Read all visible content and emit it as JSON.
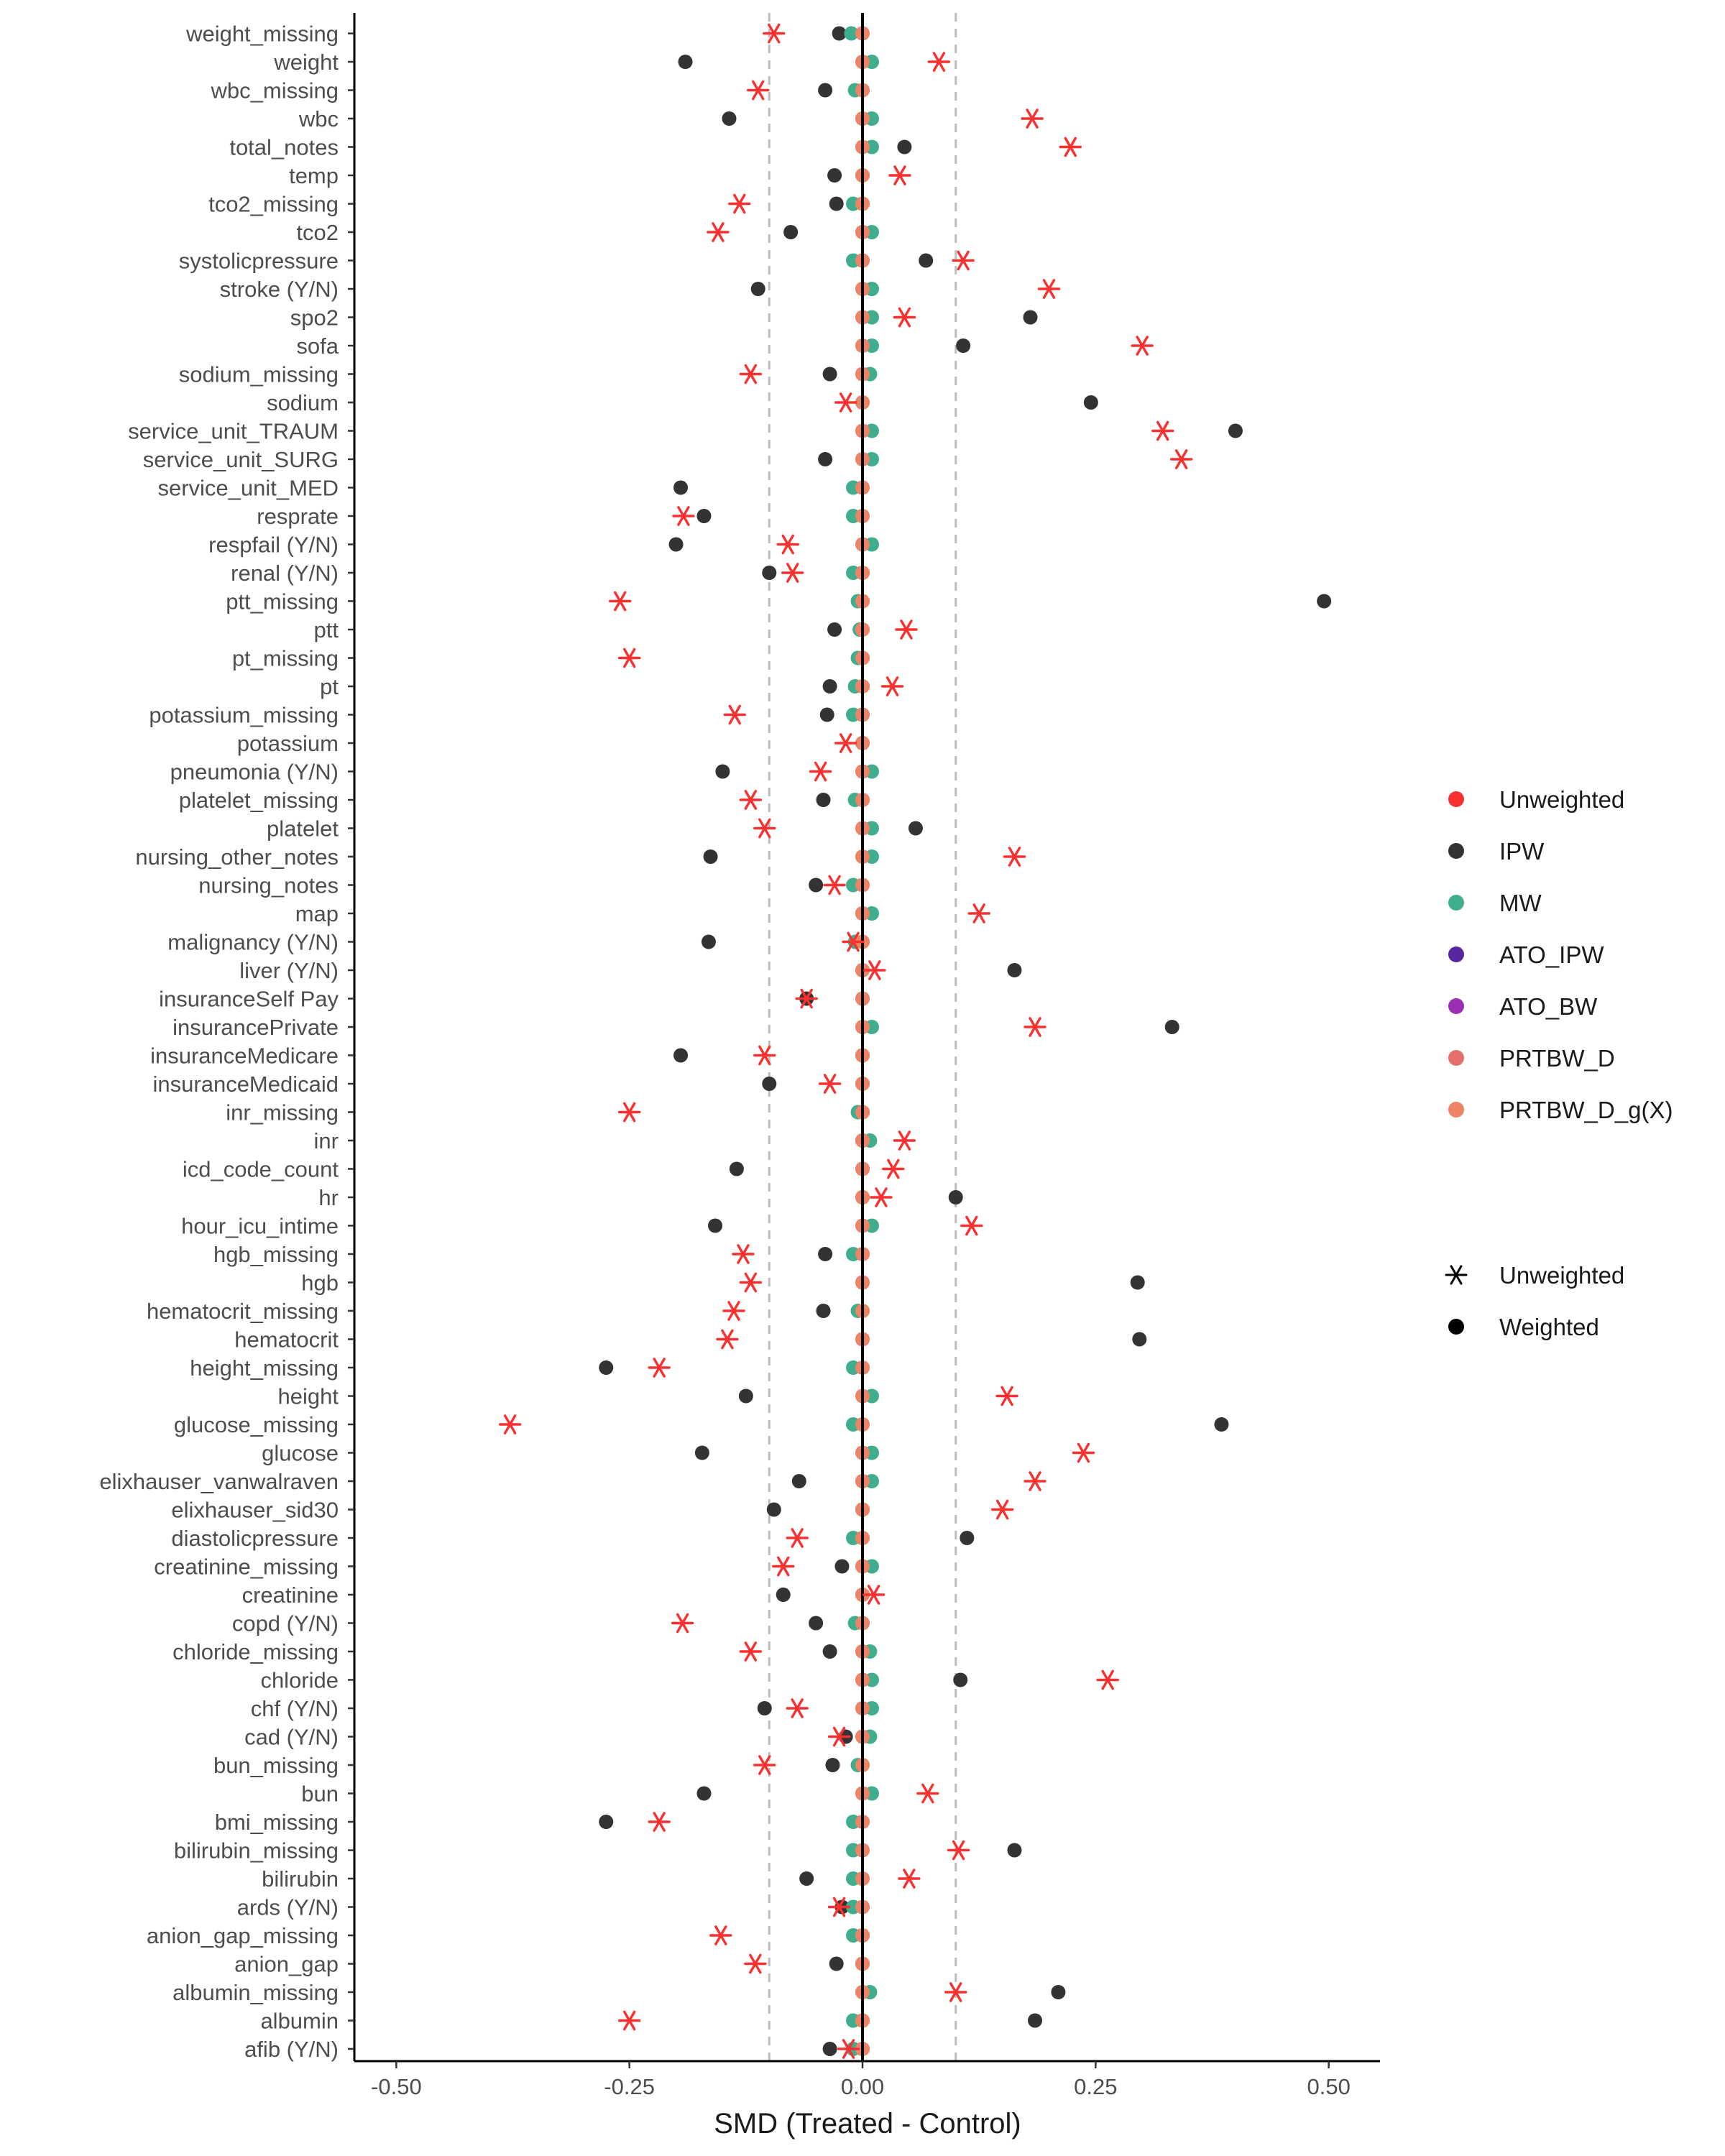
{
  "chart_data": {
    "type": "scatter",
    "title": "",
    "xlabel": "SMD (Treated - Control)",
    "ylabel": "",
    "xlim": [
      -0.545,
      0.555
    ],
    "xticks": [
      -0.5,
      -0.25,
      0.0,
      0.25,
      0.5
    ],
    "xtick_labels": [
      "-0.50",
      "-0.25",
      "0.00",
      "0.25",
      "0.50"
    ],
    "reference_lines": [
      {
        "x": 0,
        "style": "solid",
        "color": "#000000"
      },
      {
        "x": -0.1,
        "style": "dashed",
        "color": "#bdbdbd"
      },
      {
        "x": 0.1,
        "style": "dashed",
        "color": "#bdbdbd"
      }
    ],
    "series_colors": {
      "Unweighted": "#f8302f",
      "IPW": "#333333",
      "MW": "#3fae8f",
      "ATO_IPW": "#5a26a0",
      "ATO_BW": "#9c2eb4",
      "PRTBW_D": "#e56f6c",
      "PRTBW_D_g(X)": "#eb8565"
    },
    "legend_color": {
      "title": "",
      "items": [
        {
          "label": "Unweighted",
          "color": "#f8302f"
        },
        {
          "label": "IPW",
          "color": "#333333"
        },
        {
          "label": "MW",
          "color": "#3fae8f"
        },
        {
          "label": "ATO_IPW",
          "color": "#5a26a0"
        },
        {
          "label": "ATO_BW",
          "color": "#9c2eb4"
        },
        {
          "label": "PRTBW_D",
          "color": "#e56f6c"
        },
        {
          "label": "PRTBW_D_g(X)",
          "color": "#eb8565"
        }
      ]
    },
    "legend_shape": {
      "title": "",
      "items": [
        {
          "label": "Unweighted",
          "shape": "asterisk"
        },
        {
          "label": "Weighted",
          "shape": "circle"
        }
      ]
    },
    "categories": [
      "weight_missing",
      "weight",
      "wbc_missing",
      "wbc",
      "total_notes",
      "temp",
      "tco2_missing",
      "tco2",
      "systolicpressure",
      "stroke (Y/N)",
      "spo2",
      "sofa",
      "sodium_missing",
      "sodium",
      "service_unit_TRAUM",
      "service_unit_SURG",
      "service_unit_MED",
      "resprate",
      "respfail (Y/N)",
      "renal (Y/N)",
      "ptt_missing",
      "ptt",
      "pt_missing",
      "pt",
      "potassium_missing",
      "potassium",
      "pneumonia (Y/N)",
      "platelet_missing",
      "platelet",
      "nursing_other_notes",
      "nursing_notes",
      "map",
      "malignancy (Y/N)",
      "liver (Y/N)",
      "insuranceSelf Pay",
      "insurancePrivate",
      "insuranceMedicare",
      "insuranceMedicaid",
      "inr_missing",
      "inr",
      "icd_code_count",
      "hr",
      "hour_icu_intime",
      "hgb_missing",
      "hgb",
      "hematocrit_missing",
      "hematocrit",
      "height_missing",
      "height",
      "glucose_missing",
      "glucose",
      "elixhauser_vanwalraven",
      "elixhauser_sid30",
      "diastolicpressure",
      "creatinine_missing",
      "creatinine",
      "copd (Y/N)",
      "chloride_missing",
      "chloride",
      "chf (Y/N)",
      "cad (Y/N)",
      "bun_missing",
      "bun",
      "bmi_missing",
      "bilirubin_missing",
      "bilirubin",
      "ards (Y/N)",
      "anion_gap_missing",
      "anion_gap",
      "albumin_missing",
      "albumin",
      "afib (Y/N)"
    ],
    "series": [
      {
        "name": "Unweighted",
        "shape": "asterisk",
        "values": [
          -0.095,
          0.082,
          -0.112,
          0.182,
          0.223,
          0.04,
          -0.132,
          -0.155,
          0.108,
          0.2,
          0.045,
          0.3,
          -0.12,
          -0.018,
          0.322,
          0.342,
          null,
          -0.192,
          -0.08,
          -0.075,
          -0.26,
          0.047,
          -0.25,
          0.032,
          -0.137,
          -0.018,
          -0.045,
          -0.12,
          -0.105,
          0.163,
          -0.03,
          0.125,
          -0.01,
          0.013,
          -0.06,
          0.185,
          -0.105,
          -0.035,
          -0.25,
          0.045,
          0.033,
          0.02,
          0.117,
          -0.128,
          -0.12,
          -0.138,
          -0.145,
          -0.218,
          0.155,
          -0.378,
          0.237,
          0.185,
          0.15,
          -0.07,
          -0.085,
          0.012,
          -0.193,
          -0.12,
          0.263,
          -0.07,
          -0.025,
          -0.105,
          0.07,
          -0.218,
          0.103,
          0.05,
          -0.025,
          -0.152,
          -0.115,
          0.1,
          -0.25,
          -0.015
        ]
      },
      {
        "name": "IPW",
        "shape": "circle",
        "values": [
          -0.025,
          -0.19,
          -0.04,
          -0.143,
          0.045,
          -0.03,
          -0.028,
          -0.077,
          0.068,
          -0.112,
          0.18,
          0.108,
          -0.035,
          0.245,
          0.4,
          -0.04,
          -0.195,
          -0.17,
          -0.2,
          -0.1,
          0.495,
          -0.03,
          0.0,
          -0.035,
          -0.038,
          0.0,
          -0.15,
          -0.042,
          0.057,
          -0.163,
          -0.05,
          0.0,
          -0.165,
          0.163,
          -0.06,
          0.332,
          -0.195,
          -0.1,
          0.0,
          0.0,
          -0.135,
          0.1,
          -0.158,
          -0.04,
          0.295,
          -0.042,
          0.297,
          -0.275,
          -0.125,
          0.385,
          -0.172,
          -0.068,
          -0.095,
          0.112,
          -0.022,
          -0.085,
          -0.05,
          -0.035,
          0.105,
          -0.105,
          -0.018,
          -0.032,
          -0.17,
          -0.275,
          0.163,
          -0.06,
          -0.022,
          0.0,
          -0.028,
          0.21,
          0.185,
          -0.035
        ]
      },
      {
        "name": "MW",
        "shape": "circle",
        "values": [
          -0.012,
          0.01,
          -0.008,
          0.01,
          0.01,
          0.0,
          -0.01,
          0.01,
          -0.01,
          0.01,
          0.01,
          0.01,
          0.008,
          0.0,
          0.01,
          0.01,
          -0.01,
          -0.01,
          0.01,
          -0.01,
          -0.005,
          -0.003,
          -0.005,
          -0.008,
          -0.01,
          0.0,
          0.01,
          -0.008,
          0.01,
          0.01,
          -0.01,
          0.01,
          -0.008,
          0.0,
          0.0,
          0.01,
          0.0,
          0.0,
          -0.005,
          0.008,
          0.0,
          0.0,
          0.01,
          -0.01,
          0.0,
          -0.005,
          0.0,
          -0.01,
          0.01,
          -0.01,
          0.01,
          0.01,
          0.0,
          -0.01,
          0.01,
          0.0,
          -0.008,
          0.008,
          0.01,
          0.01,
          0.008,
          -0.005,
          0.01,
          -0.01,
          -0.01,
          -0.01,
          -0.01,
          -0.01,
          0.0,
          0.008,
          -0.01,
          -0.01
        ]
      },
      {
        "name": "PRTBW_D",
        "shape": "circle",
        "values": [
          0.0,
          0.0,
          0.0,
          0.0,
          0.0,
          0.0,
          0.0,
          0.0,
          0.0,
          0.0,
          0.0,
          0.0,
          0.0,
          0.0,
          0.0,
          0.0,
          0.0,
          0.0,
          0.0,
          0.0,
          0.0,
          0.0,
          0.0,
          0.0,
          0.0,
          0.0,
          0.0,
          0.0,
          0.0,
          0.0,
          0.0,
          0.0,
          0.0,
          0.0,
          0.0,
          0.0,
          0.0,
          0.0,
          0.0,
          0.0,
          0.0,
          0.0,
          0.0,
          0.0,
          0.0,
          0.0,
          0.0,
          0.0,
          0.0,
          0.0,
          0.0,
          0.0,
          0.0,
          0.0,
          0.0,
          0.0,
          0.0,
          0.0,
          0.0,
          0.0,
          0.0,
          0.0,
          0.0,
          0.0,
          0.0,
          0.0,
          0.0,
          0.0,
          0.0,
          0.0,
          0.0,
          0.0
        ]
      },
      {
        "name": "PRTBW_D_g(X)",
        "shape": "circle",
        "values": [
          0.0,
          0.0,
          0.0,
          0.0,
          0.0,
          0.0,
          0.0,
          0.0,
          0.0,
          0.0,
          0.0,
          0.0,
          0.0,
          0.0,
          0.0,
          0.0,
          0.0,
          0.0,
          0.0,
          0.0,
          0.0,
          0.0,
          0.0,
          0.0,
          0.0,
          0.0,
          0.0,
          0.0,
          0.0,
          0.0,
          0.0,
          0.0,
          0.0,
          0.0,
          0.0,
          0.0,
          0.0,
          0.0,
          0.0,
          0.0,
          0.0,
          0.0,
          0.0,
          0.0,
          0.0,
          0.0,
          0.0,
          0.0,
          0.0,
          0.0,
          0.0,
          0.0,
          0.0,
          0.0,
          0.0,
          0.0,
          0.0,
          0.0,
          0.0,
          0.0,
          0.0,
          0.0,
          0.0,
          0.0,
          0.0,
          0.0,
          0.0,
          0.0,
          0.0,
          0.0,
          0.0,
          0.0
        ]
      },
      {
        "name": "ATO_IPW",
        "shape": "circle",
        "values": []
      },
      {
        "name": "ATO_BW",
        "shape": "circle",
        "values": []
      }
    ]
  }
}
